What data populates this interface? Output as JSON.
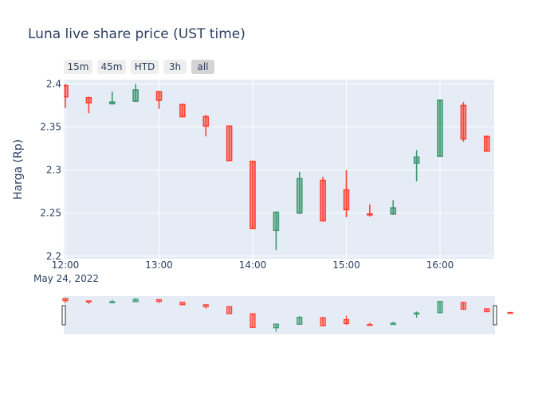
{
  "chart_data": {
    "type": "candlestick",
    "title": "Luna live share price (UST time)",
    "ylabel": "Harga (Rp)",
    "xlabel": "",
    "date_label": "May 24, 2022",
    "x_tick_labels": [
      "12:00",
      "13:00",
      "14:00",
      "15:00",
      "16:00"
    ],
    "y_tick_labels": [
      "2.2",
      "2.25",
      "2.3",
      "2.35",
      "2.4"
    ],
    "ylim": [
      2.197,
      2.405
    ],
    "grid": true,
    "legend": "none",
    "range_selector": {
      "buttons": [
        "15m",
        "45m",
        "HTD",
        "3h",
        "all"
      ],
      "active": "all"
    },
    "rangeslider": true,
    "colors": {
      "increasing": "#3d9970",
      "decreasing": "#ff4136",
      "plot_bg": "#e5ecf6",
      "grid": "#ffffff",
      "text": "#2a3f5f"
    },
    "candles": [
      {
        "time": "12:00",
        "open": 2.398,
        "high": 2.4,
        "low": 2.372,
        "close": 2.385
      },
      {
        "time": "12:15",
        "open": 2.384,
        "high": 2.385,
        "low": 2.366,
        "close": 2.378
      },
      {
        "time": "12:30",
        "open": 2.377,
        "high": 2.391,
        "low": 2.376,
        "close": 2.379
      },
      {
        "time": "12:45",
        "open": 2.38,
        "high": 2.4,
        "low": 2.379,
        "close": 2.393
      },
      {
        "time": "13:00",
        "open": 2.391,
        "high": 2.392,
        "low": 2.371,
        "close": 2.381
      },
      {
        "time": "13:15",
        "open": 2.376,
        "high": 2.377,
        "low": 2.361,
        "close": 2.362
      },
      {
        "time": "13:30",
        "open": 2.362,
        "high": 2.364,
        "low": 2.339,
        "close": 2.351
      },
      {
        "time": "13:45",
        "open": 2.351,
        "high": 2.352,
        "low": 2.311,
        "close": 2.311
      },
      {
        "time": "14:00",
        "open": 2.31,
        "high": 2.311,
        "low": 2.232,
        "close": 2.232
      },
      {
        "time": "14:15",
        "open": 2.23,
        "high": 2.251,
        "low": 2.207,
        "close": 2.251
      },
      {
        "time": "14:30",
        "open": 2.25,
        "high": 2.298,
        "low": 2.249,
        "close": 2.29
      },
      {
        "time": "14:45",
        "open": 2.288,
        "high": 2.292,
        "low": 2.24,
        "close": 2.241
      },
      {
        "time": "15:00",
        "open": 2.277,
        "high": 2.3,
        "low": 2.245,
        "close": 2.254
      },
      {
        "time": "15:15",
        "open": 2.249,
        "high": 2.26,
        "low": 2.246,
        "close": 2.248
      },
      {
        "time": "15:30",
        "open": 2.249,
        "high": 2.265,
        "low": 2.248,
        "close": 2.256
      },
      {
        "time": "15:45",
        "open": 2.308,
        "high": 2.323,
        "low": 2.287,
        "close": 2.315
      },
      {
        "time": "16:00",
        "open": 2.316,
        "high": 2.382,
        "low": 2.316,
        "close": 2.381
      },
      {
        "time": "16:15",
        "open": 2.375,
        "high": 2.379,
        "low": 2.333,
        "close": 2.336
      },
      {
        "time": "16:30",
        "open": 2.339,
        "high": 2.34,
        "low": 2.322,
        "close": 2.322
      },
      {
        "time": "16:45",
        "open": 2.318,
        "high": 2.318,
        "low": 2.316,
        "close": 2.317
      }
    ]
  }
}
